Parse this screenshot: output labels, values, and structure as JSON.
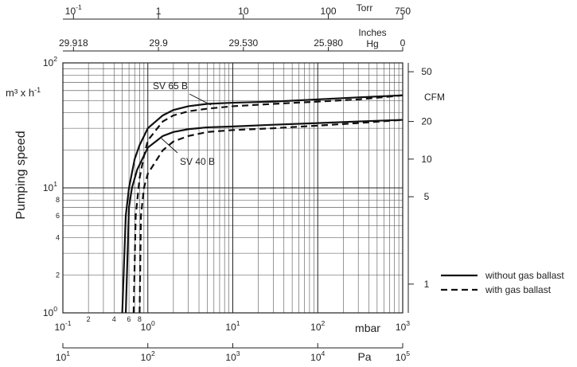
{
  "chart_data": {
    "type": "line",
    "title": "",
    "ylabel": "Pumping speed",
    "y_unit": "m³ x h-1",
    "y_scale": "log",
    "ylim": [
      1,
      100
    ],
    "x_scale": "log",
    "xlim": [
      0.1,
      1000
    ],
    "x_unit": "mbar",
    "x_ticks": [
      {
        "value": 0.1,
        "base": "10",
        "exp": "-1"
      },
      {
        "value": 1,
        "base": "10",
        "exp": "0"
      },
      {
        "value": 10,
        "base": "10",
        "exp": "1"
      },
      {
        "value": 100,
        "base": "10",
        "exp": "2"
      },
      {
        "value": 1000,
        "base": "10",
        "exp": "3"
      }
    ],
    "x_minor_labels": [
      {
        "value": 0.2,
        "label": "2"
      },
      {
        "value": 0.4,
        "label": "4"
      },
      {
        "value": 0.6,
        "label": "6"
      },
      {
        "value": 0.8,
        "label": "8"
      }
    ],
    "y_ticks": [
      {
        "value": 1,
        "base": "10",
        "exp": "0"
      },
      {
        "value": 10,
        "base": "10",
        "exp": "1"
      },
      {
        "value": 100,
        "base": "10",
        "exp": "2"
      }
    ],
    "y_minor_labels": [
      {
        "value": 2,
        "label": "2"
      },
      {
        "value": 4,
        "label": "4"
      },
      {
        "value": 6,
        "label": "6"
      },
      {
        "value": 8,
        "label": "8"
      }
    ],
    "pa_axis": {
      "unit": "Pa",
      "ticks": [
        {
          "value": 0.1,
          "base": "10",
          "exp": "1"
        },
        {
          "value": 1,
          "base": "10",
          "exp": "2"
        },
        {
          "value": 10,
          "base": "10",
          "exp": "3"
        },
        {
          "value": 100,
          "base": "10",
          "exp": "4"
        },
        {
          "value": 1000,
          "base": "10",
          "exp": "5"
        }
      ]
    },
    "torr_axis": {
      "unit": "Torr",
      "ticks": [
        {
          "value": 0.1333,
          "base": "10",
          "exp": "-1"
        },
        {
          "value": 1.333,
          "base": "1",
          "exp": ""
        },
        {
          "value": 13.33,
          "base": "10",
          "exp": ""
        },
        {
          "value": 133.3,
          "base": "100",
          "exp": ""
        },
        {
          "value": 1000,
          "base": "750",
          "exp": ""
        }
      ]
    },
    "inches_axis": {
      "unit_line1": "Inches",
      "unit_line2": "Hg",
      "ticks": [
        {
          "value": 0.1333,
          "label": "29.918"
        },
        {
          "value": 1.333,
          "label": "29.9"
        },
        {
          "value": 13.33,
          "label": "29.530"
        },
        {
          "value": 133.3,
          "label": "25.980"
        },
        {
          "value": 1000,
          "label": "0"
        }
      ]
    },
    "cfm_axis": {
      "unit": "CFM",
      "ticks": [
        {
          "value": 1,
          "label": "1"
        },
        {
          "value": 5,
          "label": "5"
        },
        {
          "value": 10,
          "label": "10"
        },
        {
          "value": 20,
          "label": "20"
        },
        {
          "value": 50,
          "label": "50"
        }
      ]
    },
    "series": [
      {
        "label": "SV 65 B",
        "legend": "without gas ballast",
        "style": "solid",
        "points": [
          [
            0.5,
            1.0
          ],
          [
            0.55,
            6.0
          ],
          [
            0.6,
            10.0
          ],
          [
            0.7,
            17.0
          ],
          [
            0.8,
            22.0
          ],
          [
            1.0,
            30.0
          ],
          [
            1.5,
            38.0
          ],
          [
            2.0,
            42.0
          ],
          [
            3.0,
            45.0
          ],
          [
            5.0,
            47.0
          ],
          [
            10.0,
            48.0
          ],
          [
            30.0,
            49.0
          ],
          [
            100.0,
            51.0
          ],
          [
            300.0,
            53.0
          ],
          [
            1000.0,
            55.0
          ]
        ]
      },
      {
        "label": "SV 65 B",
        "legend": "with gas ballast",
        "style": "dash",
        "points": [
          [
            0.68,
            1.0
          ],
          [
            0.72,
            6.0
          ],
          [
            0.8,
            12.0
          ],
          [
            0.9,
            18.0
          ],
          [
            1.0,
            24.0
          ],
          [
            1.5,
            34.0
          ],
          [
            2.0,
            38.0
          ],
          [
            3.0,
            41.0
          ],
          [
            5.0,
            43.0
          ],
          [
            10.0,
            45.0
          ],
          [
            30.0,
            47.0
          ],
          [
            100.0,
            49.0
          ],
          [
            300.0,
            51.0
          ],
          [
            1000.0,
            55.0
          ]
        ]
      },
      {
        "label": "SV 40 B",
        "legend": "without gas ballast",
        "style": "solid",
        "points": [
          [
            0.55,
            1.0
          ],
          [
            0.6,
            7.0
          ],
          [
            0.65,
            10.0
          ],
          [
            0.75,
            14.0
          ],
          [
            1.0,
            21.0
          ],
          [
            1.5,
            26.0
          ],
          [
            2.0,
            28.0
          ],
          [
            3.0,
            29.5
          ],
          [
            5.0,
            30.5
          ],
          [
            10.0,
            31.0
          ],
          [
            30.0,
            32.0
          ],
          [
            100.0,
            33.0
          ],
          [
            300.0,
            34.0
          ],
          [
            1000.0,
            35.0
          ]
        ]
      },
      {
        "label": "SV 40 B",
        "legend": "with gas ballast",
        "style": "dash",
        "points": [
          [
            0.8,
            1.0
          ],
          [
            0.83,
            6.0
          ],
          [
            0.9,
            10.0
          ],
          [
            1.0,
            13.0
          ],
          [
            1.5,
            20.0
          ],
          [
            2.0,
            23.5
          ],
          [
            3.0,
            26.0
          ],
          [
            5.0,
            28.0
          ],
          [
            10.0,
            29.0
          ],
          [
            30.0,
            30.0
          ],
          [
            100.0,
            31.5
          ],
          [
            300.0,
            33.0
          ],
          [
            1000.0,
            35.0
          ]
        ]
      }
    ],
    "annotations": [
      {
        "text": "SV 65 B"
      },
      {
        "text": "SV 40 B"
      }
    ],
    "legend": {
      "placement": "bottom-right",
      "entries": [
        {
          "label": "without gas ballast",
          "style": "solid"
        },
        {
          "label": "with gas ballast",
          "style": "dash"
        }
      ]
    },
    "grid": true
  }
}
